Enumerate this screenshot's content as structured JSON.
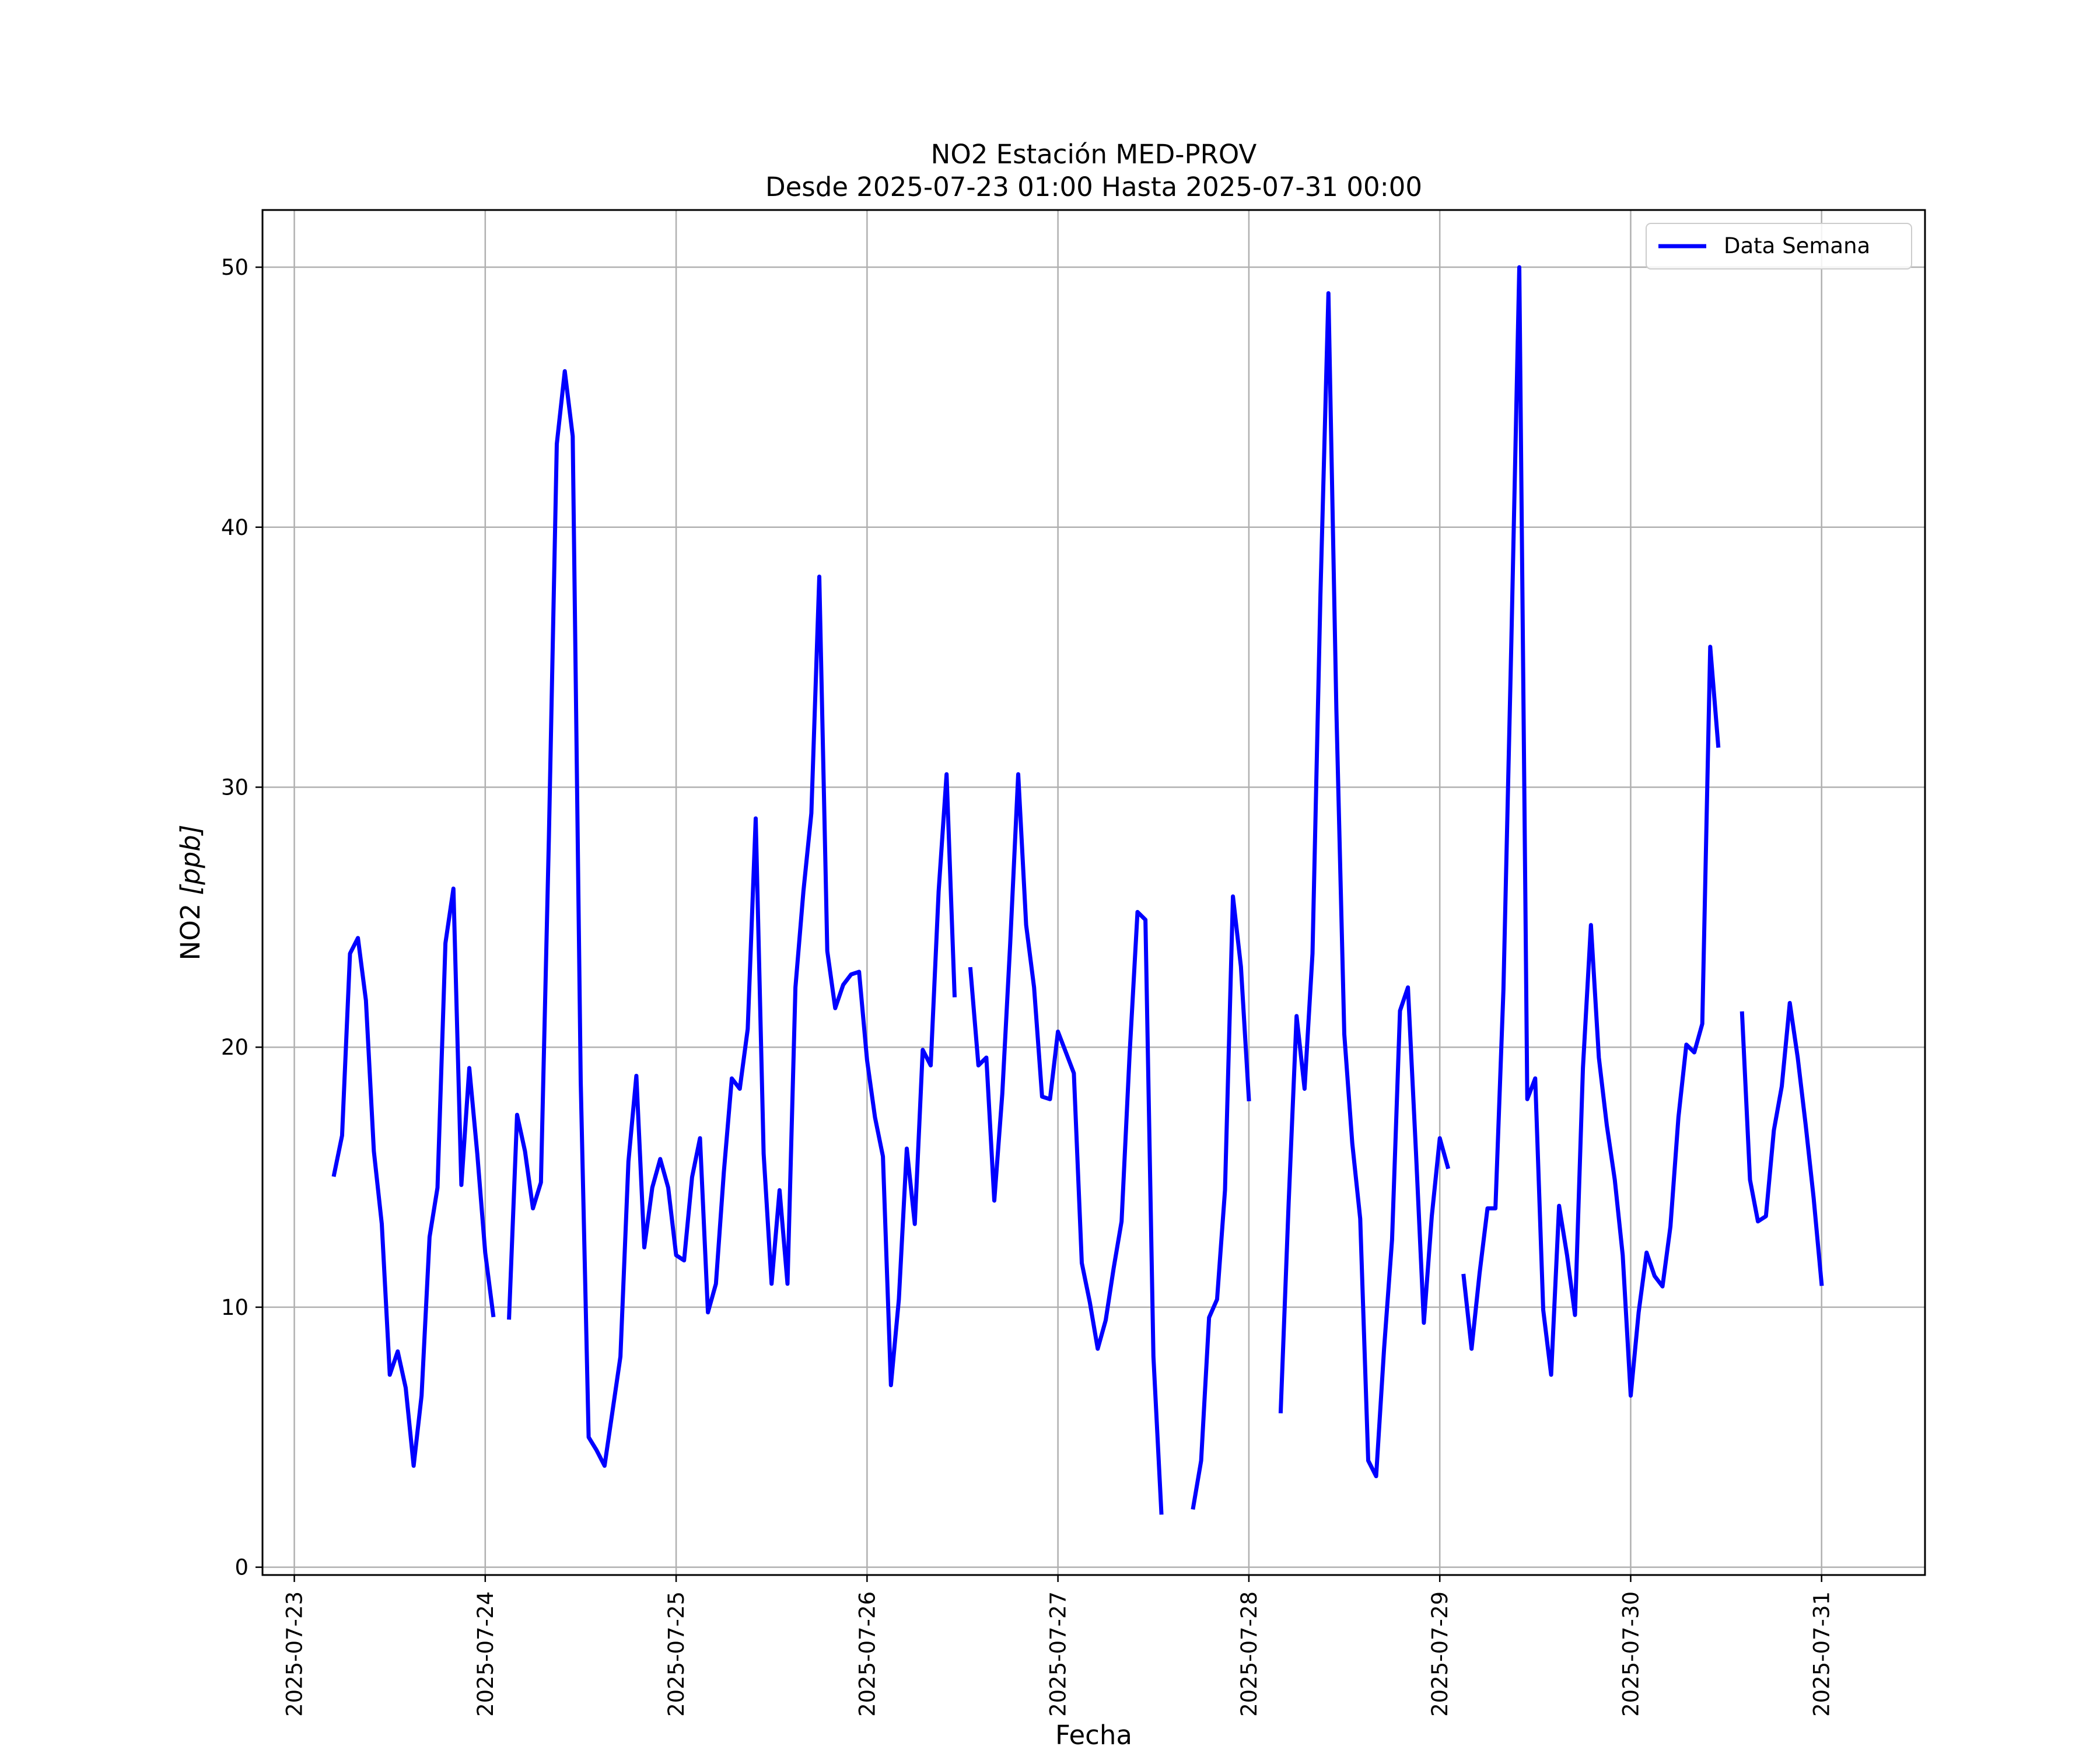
{
  "chart_data": {
    "type": "line",
    "title": "NO2 Estación MED-PROV",
    "subtitle": "Desde 2025-07-23 01:00 Hasta 2025-07-31 00:00",
    "xlabel": "Fecha",
    "ylabel_text": "NO2 ",
    "ylabel_unit": "[ppb]",
    "xlim": [
      "2025-07-22 20:00",
      "2025-07-31 13:00"
    ],
    "ylim": [
      -0.3,
      52.2
    ],
    "xticks": [
      "2025-07-23",
      "2025-07-24",
      "2025-07-25",
      "2025-07-26",
      "2025-07-27",
      "2025-07-28",
      "2025-07-29",
      "2025-07-30",
      "2025-07-31"
    ],
    "yticks": [
      0,
      10,
      20,
      30,
      40,
      50
    ],
    "grid": true,
    "legend_position": "upper right",
    "series": [
      {
        "name": "Data Semana",
        "color": "#0000ff",
        "segments": [
          [
            [
              "2025-07-23 05:00",
              15.1
            ],
            [
              "2025-07-23 06:00",
              16.6
            ],
            [
              "2025-07-23 07:00",
              23.6
            ],
            [
              "2025-07-23 08:00",
              24.2
            ],
            [
              "2025-07-23 09:00",
              21.8
            ],
            [
              "2025-07-23 10:00",
              16.0
            ],
            [
              "2025-07-23 11:00",
              13.2
            ],
            [
              "2025-07-23 12:00",
              7.4
            ],
            [
              "2025-07-23 13:00",
              8.3
            ],
            [
              "2025-07-23 14:00",
              6.9
            ],
            [
              "2025-07-23 15:00",
              3.9
            ],
            [
              "2025-07-23 16:00",
              6.6
            ],
            [
              "2025-07-23 17:00",
              12.7
            ],
            [
              "2025-07-23 18:00",
              14.6
            ],
            [
              "2025-07-23 19:00",
              24.0
            ],
            [
              "2025-07-23 20:00",
              26.1
            ],
            [
              "2025-07-23 21:00",
              14.7
            ],
            [
              "2025-07-23 22:00",
              19.2
            ],
            [
              "2025-07-23 23:00",
              15.9
            ],
            [
              "2025-07-24 00:00",
              12.1
            ],
            [
              "2025-07-24 01:00",
              9.7
            ]
          ],
          [
            [
              "2025-07-24 03:00",
              9.6
            ],
            [
              "2025-07-24 04:00",
              17.4
            ],
            [
              "2025-07-24 05:00",
              16.0
            ],
            [
              "2025-07-24 06:00",
              13.8
            ],
            [
              "2025-07-24 07:00",
              14.8
            ],
            [
              "2025-07-24 08:00",
              28.0
            ],
            [
              "2025-07-24 09:00",
              43.2
            ],
            [
              "2025-07-24 10:00",
              46.0
            ],
            [
              "2025-07-24 11:00",
              43.5
            ],
            [
              "2025-07-24 12:00",
              18.7
            ],
            [
              "2025-07-24 13:00",
              5.0
            ],
            [
              "2025-07-24 14:00",
              4.5
            ],
            [
              "2025-07-24 15:00",
              3.9
            ],
            [
              "2025-07-24 16:00",
              6.0
            ],
            [
              "2025-07-24 17:00",
              8.1
            ],
            [
              "2025-07-24 18:00",
              15.6
            ],
            [
              "2025-07-24 19:00",
              18.9
            ],
            [
              "2025-07-24 20:00",
              12.3
            ],
            [
              "2025-07-24 21:00",
              14.6
            ],
            [
              "2025-07-24 22:00",
              15.7
            ],
            [
              "2025-07-24 23:00",
              14.6
            ],
            [
              "2025-07-25 00:00",
              12.0
            ],
            [
              "2025-07-25 01:00",
              11.8
            ],
            [
              "2025-07-25 02:00",
              15.0
            ],
            [
              "2025-07-25 03:00",
              16.5
            ],
            [
              "2025-07-25 04:00",
              9.8
            ],
            [
              "2025-07-25 05:00",
              10.9
            ],
            [
              "2025-07-25 06:00",
              15.2
            ],
            [
              "2025-07-25 07:00",
              18.8
            ],
            [
              "2025-07-25 08:00",
              18.4
            ],
            [
              "2025-07-25 09:00",
              20.7
            ],
            [
              "2025-07-25 10:00",
              28.8
            ],
            [
              "2025-07-25 11:00",
              15.9
            ],
            [
              "2025-07-25 12:00",
              10.9
            ],
            [
              "2025-07-25 13:00",
              14.5
            ],
            [
              "2025-07-25 14:00",
              10.9
            ],
            [
              "2025-07-25 15:00",
              22.3
            ],
            [
              "2025-07-25 16:00",
              26.0
            ],
            [
              "2025-07-25 17:00",
              29.0
            ],
            [
              "2025-07-25 18:00",
              38.1
            ],
            [
              "2025-07-25 19:00",
              23.7
            ],
            [
              "2025-07-25 20:00",
              21.5
            ],
            [
              "2025-07-25 21:00",
              22.4
            ],
            [
              "2025-07-25 22:00",
              22.8
            ],
            [
              "2025-07-25 23:00",
              22.9
            ],
            [
              "2025-07-26 00:00",
              19.5
            ],
            [
              "2025-07-26 01:00",
              17.3
            ],
            [
              "2025-07-26 02:00",
              15.8
            ],
            [
              "2025-07-26 03:00",
              7.0
            ],
            [
              "2025-07-26 04:00",
              10.3
            ],
            [
              "2025-07-26 05:00",
              16.1
            ],
            [
              "2025-07-26 06:00",
              13.2
            ],
            [
              "2025-07-26 07:00",
              19.9
            ],
            [
              "2025-07-26 08:00",
              19.3
            ],
            [
              "2025-07-26 09:00",
              26.0
            ],
            [
              "2025-07-26 10:00",
              30.5
            ],
            [
              "2025-07-26 11:00",
              22.0
            ]
          ],
          [
            [
              "2025-07-26 13:00",
              23.0
            ],
            [
              "2025-07-26 14:00",
              19.3
            ],
            [
              "2025-07-26 15:00",
              19.6
            ],
            [
              "2025-07-26 16:00",
              14.1
            ],
            [
              "2025-07-26 17:00",
              18.2
            ],
            [
              "2025-07-26 18:00",
              24.0
            ],
            [
              "2025-07-26 19:00",
              30.5
            ],
            [
              "2025-07-26 20:00",
              24.7
            ],
            [
              "2025-07-26 21:00",
              22.3
            ],
            [
              "2025-07-26 22:00",
              18.1
            ],
            [
              "2025-07-26 23:00",
              18.0
            ],
            [
              "2025-07-27 00:00",
              20.6
            ],
            [
              "2025-07-27 01:00",
              19.8
            ],
            [
              "2025-07-27 02:00",
              19.0
            ],
            [
              "2025-07-27 03:00",
              11.7
            ],
            [
              "2025-07-27 04:00",
              10.2
            ],
            [
              "2025-07-27 05:00",
              8.4
            ],
            [
              "2025-07-27 06:00",
              9.5
            ],
            [
              "2025-07-27 07:00",
              11.5
            ],
            [
              "2025-07-27 08:00",
              13.3
            ],
            [
              "2025-07-27 09:00",
              19.7
            ],
            [
              "2025-07-27 10:00",
              25.2
            ],
            [
              "2025-07-27 11:00",
              24.9
            ],
            [
              "2025-07-27 12:00",
              8.1
            ],
            [
              "2025-07-27 13:00",
              2.1
            ]
          ],
          [
            [
              "2025-07-27 17:00",
              2.3
            ],
            [
              "2025-07-27 18:00",
              4.1
            ],
            [
              "2025-07-27 19:00",
              9.6
            ],
            [
              "2025-07-27 20:00",
              10.3
            ],
            [
              "2025-07-27 21:00",
              14.5
            ],
            [
              "2025-07-27 22:00",
              25.8
            ],
            [
              "2025-07-27 23:00",
              23.1
            ],
            [
              "2025-07-28 00:00",
              18.0
            ]
          ],
          [
            [
              "2025-07-28 04:00",
              6.0
            ],
            [
              "2025-07-28 05:00",
              14.0
            ],
            [
              "2025-07-28 06:00",
              21.2
            ],
            [
              "2025-07-28 07:00",
              18.4
            ],
            [
              "2025-07-28 08:00",
              23.6
            ],
            [
              "2025-07-28 09:00",
              37.4
            ],
            [
              "2025-07-28 10:00",
              49.0
            ],
            [
              "2025-07-28 11:00",
              33.0
            ],
            [
              "2025-07-28 12:00",
              20.5
            ],
            [
              "2025-07-28 13:00",
              16.3
            ],
            [
              "2025-07-28 14:00",
              13.4
            ],
            [
              "2025-07-28 15:00",
              4.1
            ],
            [
              "2025-07-28 16:00",
              3.5
            ],
            [
              "2025-07-28 17:00",
              8.4
            ],
            [
              "2025-07-28 18:00",
              12.6
            ],
            [
              "2025-07-28 19:00",
              21.4
            ],
            [
              "2025-07-28 20:00",
              22.3
            ],
            [
              "2025-07-28 21:00",
              16.0
            ],
            [
              "2025-07-28 22:00",
              9.4
            ],
            [
              "2025-07-28 23:00",
              13.5
            ],
            [
              "2025-07-29 00:00",
              16.5
            ],
            [
              "2025-07-29 01:00",
              15.4
            ]
          ],
          [
            [
              "2025-07-29 03:00",
              11.2
            ],
            [
              "2025-07-29 04:00",
              8.4
            ],
            [
              "2025-07-29 05:00",
              11.3
            ],
            [
              "2025-07-29 06:00",
              13.8
            ],
            [
              "2025-07-29 07:00",
              13.8
            ],
            [
              "2025-07-29 08:00",
              22.2
            ],
            [
              "2025-07-29 09:00",
              35.6
            ],
            [
              "2025-07-29 10:00",
              50.0
            ],
            [
              "2025-07-29 11:00",
              18.0
            ],
            [
              "2025-07-29 12:00",
              18.8
            ],
            [
              "2025-07-29 13:00",
              9.9
            ],
            [
              "2025-07-29 14:00",
              7.4
            ],
            [
              "2025-07-29 15:00",
              13.9
            ],
            [
              "2025-07-29 16:00",
              12.0
            ],
            [
              "2025-07-29 17:00",
              9.7
            ],
            [
              "2025-07-29 18:00",
              19.2
            ],
            [
              "2025-07-29 19:00",
              24.7
            ],
            [
              "2025-07-29 20:00",
              19.6
            ],
            [
              "2025-07-29 21:00",
              17.0
            ],
            [
              "2025-07-29 22:00",
              14.9
            ],
            [
              "2025-07-29 23:00",
              12.0
            ],
            [
              "2025-07-30 00:00",
              6.6
            ],
            [
              "2025-07-30 01:00",
              9.8
            ],
            [
              "2025-07-30 02:00",
              12.1
            ],
            [
              "2025-07-30 03:00",
              11.2
            ],
            [
              "2025-07-30 04:00",
              10.8
            ],
            [
              "2025-07-30 05:00",
              13.1
            ],
            [
              "2025-07-30 06:00",
              17.3
            ],
            [
              "2025-07-30 07:00",
              20.1
            ],
            [
              "2025-07-30 08:00",
              19.8
            ],
            [
              "2025-07-30 09:00",
              20.9
            ],
            [
              "2025-07-30 10:00",
              35.4
            ],
            [
              "2025-07-30 11:00",
              31.6
            ]
          ],
          [
            [
              "2025-07-30 14:00",
              21.3
            ],
            [
              "2025-07-30 15:00",
              14.9
            ],
            [
              "2025-07-30 16:00",
              13.3
            ],
            [
              "2025-07-30 17:00",
              13.5
            ],
            [
              "2025-07-30 18:00",
              16.8
            ],
            [
              "2025-07-30 19:00",
              18.5
            ],
            [
              "2025-07-30 20:00",
              21.7
            ],
            [
              "2025-07-30 21:00",
              19.6
            ],
            [
              "2025-07-30 22:00",
              17.0
            ],
            [
              "2025-07-30 23:00",
              14.2
            ],
            [
              "2025-07-31 00:00",
              10.9
            ]
          ]
        ]
      }
    ]
  }
}
